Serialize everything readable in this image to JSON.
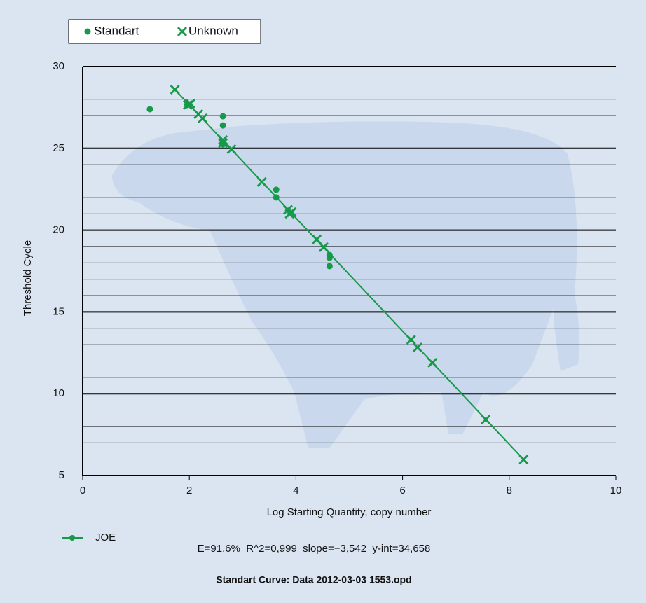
{
  "chart_data": {
    "type": "scatter",
    "title": "Standart Curve: Data 2012-03-03 1553.opd",
    "annotation": "E=91,6%  R^2=0,999  slope=−3,542  y-int=34,658",
    "x_label": "Log Starting Quantity, copy number",
    "y_label": "Threshold Cycle",
    "xlim": [
      0,
      10
    ],
    "xticks": [
      0,
      2,
      4,
      6,
      8,
      10
    ],
    "ylim": [
      5,
      30
    ],
    "yticks": [
      5,
      10,
      15,
      20,
      25,
      30
    ],
    "minor_yticks": [
      6,
      7,
      8,
      9,
      11,
      12,
      13,
      14,
      16,
      17,
      18,
      19,
      21,
      22,
      23,
      24,
      26,
      27,
      28,
      29
    ],
    "grid": true,
    "series": [
      {
        "name": "Standart",
        "marker": "circle",
        "color": "#17994a",
        "x": [
          1.26,
          1.96,
          2.63,
          2.63,
          2.63,
          3.63,
          3.63,
          4.63,
          4.63,
          4.63
        ],
        "values": [
          27.39,
          27.65,
          26.96,
          26.4,
          25.25,
          22.47,
          22.0,
          18.48,
          18.31,
          17.8
        ]
      },
      {
        "name": "Unknown",
        "marker": "x",
        "color": "#17994a",
        "x": [
          1.73,
          1.97,
          2.02,
          2.17,
          2.25,
          2.63,
          2.63,
          2.79,
          3.36,
          3.85,
          3.92,
          3.88,
          4.39,
          4.52,
          6.16,
          6.28,
          6.56,
          7.56,
          8.27
        ],
        "values": [
          28.59,
          27.65,
          27.73,
          27.09,
          26.83,
          25.51,
          25.33,
          24.95,
          22.94,
          21.25,
          21.1,
          21.0,
          19.43,
          18.96,
          13.3,
          12.83,
          11.89,
          8.42,
          5.98
        ]
      },
      {
        "name": "JOE",
        "marker": "line",
        "color": "#17994a",
        "x": [
          1.73,
          8.27
        ],
        "values": [
          28.59,
          5.98
        ]
      }
    ]
  }
}
